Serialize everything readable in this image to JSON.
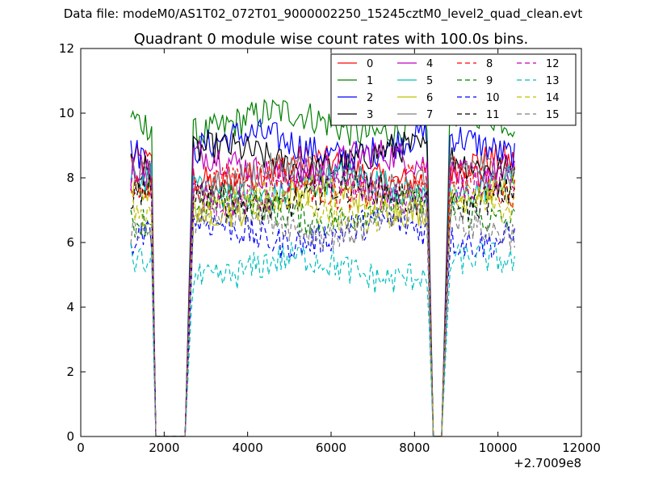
{
  "figure": {
    "suptitle": "Data file: modeM0/AS1T02_072T01_9000002250_15245cztM0_level2_quad_clean.evt"
  },
  "chart_data": {
    "type": "line",
    "title": "Quadrant 0 module wise count rates with 100.0s bins.",
    "xlabel": "",
    "ylabel": "",
    "x_offset_label": "+2.7009e8",
    "xlim": [
      0,
      12000
    ],
    "ylim": [
      0,
      12
    ],
    "x_ticks": [
      0,
      2000,
      4000,
      6000,
      8000,
      10000,
      12000
    ],
    "y_ticks": [
      0,
      2,
      4,
      6,
      8,
      10,
      12
    ],
    "grid": false,
    "legend_position": "top-right",
    "segments": [
      {
        "x_start": 1200,
        "x_end": 1700
      },
      {
        "x_start": 2700,
        "x_end": 8300
      },
      {
        "x_start": 8850,
        "x_end": 10400
      }
    ],
    "gaps": [
      {
        "x_start": 1800,
        "x_end": 2600
      },
      {
        "x_start": 8400,
        "x_end": 8750
      }
    ],
    "series": [
      {
        "name": "0",
        "color": "#ff0000",
        "dash": "solid",
        "level": 8.2
      },
      {
        "name": "1",
        "color": "#008000",
        "dash": "solid",
        "level": 9.7
      },
      {
        "name": "2",
        "color": "#0000ff",
        "dash": "solid",
        "level": 9.0
      },
      {
        "name": "3",
        "color": "#000000",
        "dash": "solid",
        "level": 8.6
      },
      {
        "name": "4",
        "color": "#bf00bf",
        "dash": "solid",
        "level": 8.4
      },
      {
        "name": "5",
        "color": "#00bfbf",
        "dash": "solid",
        "level": 7.7
      },
      {
        "name": "6",
        "color": "#bfbf00",
        "dash": "solid",
        "level": 7.3
      },
      {
        "name": "7",
        "color": "#7f7f7f",
        "dash": "solid",
        "level": 8.0
      },
      {
        "name": "8",
        "color": "#ff0000",
        "dash": "dashed",
        "level": 7.8
      },
      {
        "name": "9",
        "color": "#008000",
        "dash": "dashed",
        "level": 7.0
      },
      {
        "name": "10",
        "color": "#0000ff",
        "dash": "dashed",
        "level": 6.3
      },
      {
        "name": "11",
        "color": "#000000",
        "dash": "dashed",
        "level": 7.4
      },
      {
        "name": "12",
        "color": "#bf00bf",
        "dash": "dashed",
        "level": 7.6
      },
      {
        "name": "13",
        "color": "#00bfbf",
        "dash": "dashed",
        "level": 5.2
      },
      {
        "name": "14",
        "color": "#bfbf00",
        "dash": "dashed",
        "level": 7.1
      },
      {
        "name": "15",
        "color": "#7f7f7f",
        "dash": "dashed",
        "level": 6.6
      }
    ]
  }
}
